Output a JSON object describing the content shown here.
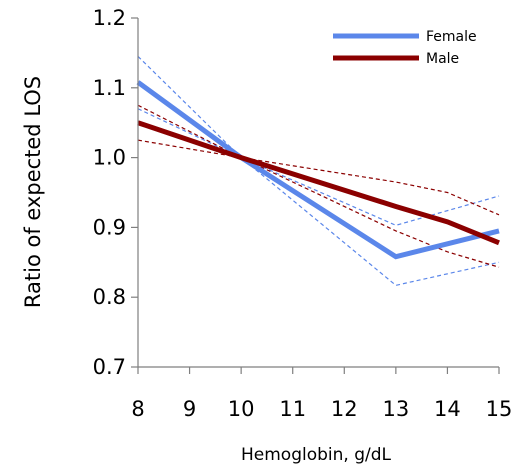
{
  "chart_data": {
    "type": "line",
    "xlabel": "Hemoglobin, g/dL",
    "ylabel": "Ratio of expected LOS",
    "xlim": [
      8,
      15
    ],
    "ylim": [
      0.7,
      1.2
    ],
    "xticks": [
      8,
      9,
      10,
      11,
      12,
      13,
      14,
      15
    ],
    "yticks": [
      0.7,
      0.8,
      0.9,
      1.0,
      1.1,
      1.2
    ],
    "xtick_labels": [
      "8",
      "9",
      "10",
      "11",
      "12",
      "13",
      "14",
      "15"
    ],
    "ytick_labels": [
      "0.7",
      "0.8",
      "0.9",
      "1.0",
      "1.1",
      "1.2"
    ],
    "grid": false,
    "legend_position": "top-right",
    "series": [
      {
        "name": "Female",
        "color": "#5b87ea",
        "style": "solid",
        "x": [
          8,
          10,
          13,
          15
        ],
        "y": [
          1.108,
          1.0,
          0.858,
          0.895
        ]
      },
      {
        "name": "Male",
        "color": "#8b0000",
        "style": "solid",
        "x": [
          8,
          10,
          13,
          14,
          15
        ],
        "y": [
          1.05,
          1.0,
          0.93,
          0.908,
          0.878
        ]
      }
    ],
    "confidence_bands": [
      {
        "series": "Female",
        "color": "#5b87ea",
        "style": "dashed",
        "upper": {
          "x": [
            8,
            10,
            13,
            15
          ],
          "y": [
            1.145,
            1.0,
            0.903,
            0.945
          ]
        },
        "lower": {
          "x": [
            8,
            10,
            13,
            15
          ],
          "y": [
            1.07,
            1.0,
            0.817,
            0.85
          ]
        }
      },
      {
        "series": "Male",
        "color": "#8b0000",
        "style": "dashed",
        "upper": {
          "x": [
            8,
            10,
            13,
            14,
            15
          ],
          "y": [
            1.075,
            1.0,
            0.965,
            0.95,
            0.918
          ]
        },
        "lower": {
          "x": [
            8,
            10,
            13,
            14,
            15
          ],
          "y": [
            1.025,
            1.0,
            0.895,
            0.865,
            0.843
          ]
        }
      }
    ]
  }
}
